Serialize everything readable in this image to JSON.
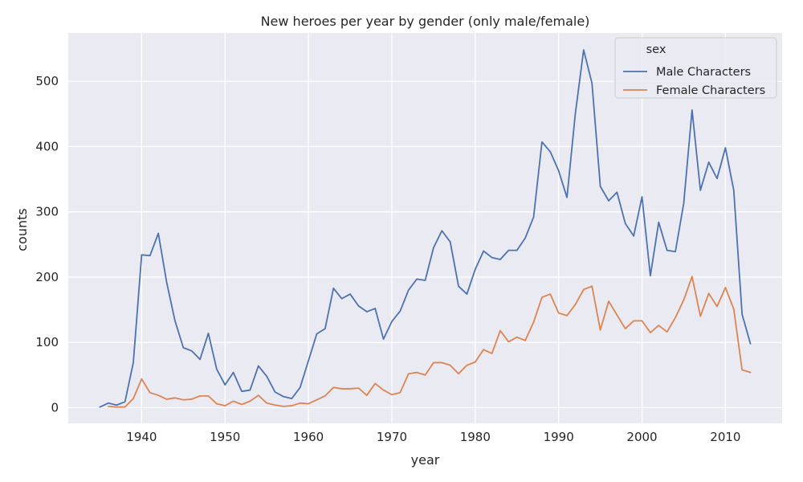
{
  "chart_data": {
    "type": "line",
    "title": "New heroes per year by gender (only male/female)",
    "xlabel": "year",
    "ylabel": "counts",
    "xlim": [
      1931.2,
      2016.8
    ],
    "ylim": [
      -24,
      574
    ],
    "xticks": [
      "1940",
      "1950",
      "1960",
      "1970",
      "1980",
      "1990",
      "2000",
      "2010"
    ],
    "yticks": [
      "0",
      "100",
      "200",
      "300",
      "400",
      "500"
    ],
    "grid": true,
    "legend": {
      "title": "sex",
      "placement": "top-right"
    },
    "series": [
      {
        "name": "Male Characters",
        "color": "#4c72b0",
        "points": [
          [
            1935,
            1
          ],
          [
            1936,
            7
          ],
          [
            1937,
            4
          ],
          [
            1938,
            9
          ],
          [
            1939,
            69
          ],
          [
            1940,
            234
          ],
          [
            1941,
            233
          ],
          [
            1942,
            267
          ],
          [
            1943,
            192
          ],
          [
            1944,
            133
          ],
          [
            1945,
            92
          ],
          [
            1946,
            87
          ],
          [
            1947,
            74
          ],
          [
            1948,
            114
          ],
          [
            1949,
            59
          ],
          [
            1950,
            35
          ],
          [
            1951,
            54
          ],
          [
            1952,
            25
          ],
          [
            1953,
            27
          ],
          [
            1954,
            64
          ],
          [
            1955,
            48
          ],
          [
            1956,
            24
          ],
          [
            1957,
            17
          ],
          [
            1958,
            14
          ],
          [
            1959,
            31
          ],
          [
            1960,
            72
          ],
          [
            1961,
            113
          ],
          [
            1962,
            121
          ],
          [
            1963,
            183
          ],
          [
            1964,
            167
          ],
          [
            1965,
            174
          ],
          [
            1966,
            156
          ],
          [
            1967,
            147
          ],
          [
            1968,
            152
          ],
          [
            1969,
            105
          ],
          [
            1970,
            132
          ],
          [
            1971,
            148
          ],
          [
            1972,
            180
          ],
          [
            1973,
            197
          ],
          [
            1974,
            195
          ],
          [
            1975,
            245
          ],
          [
            1976,
            271
          ],
          [
            1977,
            254
          ],
          [
            1978,
            186
          ],
          [
            1979,
            174
          ],
          [
            1980,
            212
          ],
          [
            1981,
            240
          ],
          [
            1982,
            230
          ],
          [
            1983,
            227
          ],
          [
            1984,
            241
          ],
          [
            1985,
            241
          ],
          [
            1986,
            260
          ],
          [
            1987,
            292
          ],
          [
            1988,
            407
          ],
          [
            1989,
            392
          ],
          [
            1990,
            363
          ],
          [
            1991,
            322
          ],
          [
            1992,
            450
          ],
          [
            1993,
            548
          ],
          [
            1994,
            497
          ],
          [
            1995,
            339
          ],
          [
            1996,
            317
          ],
          [
            1997,
            330
          ],
          [
            1998,
            282
          ],
          [
            1999,
            263
          ],
          [
            2000,
            323
          ],
          [
            2001,
            202
          ],
          [
            2002,
            284
          ],
          [
            2003,
            241
          ],
          [
            2004,
            239
          ],
          [
            2005,
            313
          ],
          [
            2006,
            456
          ],
          [
            2007,
            333
          ],
          [
            2008,
            376
          ],
          [
            2009,
            351
          ],
          [
            2010,
            398
          ],
          [
            2011,
            333
          ],
          [
            2012,
            143
          ],
          [
            2013,
            98
          ]
        ]
      },
      {
        "name": "Female Characters",
        "color": "#dd8452",
        "points": [
          [
            1936,
            2
          ],
          [
            1937,
            1
          ],
          [
            1938,
            1
          ],
          [
            1939,
            14
          ],
          [
            1940,
            44
          ],
          [
            1941,
            23
          ],
          [
            1942,
            19
          ],
          [
            1943,
            13
          ],
          [
            1944,
            15
          ],
          [
            1945,
            12
          ],
          [
            1946,
            13
          ],
          [
            1947,
            18
          ],
          [
            1948,
            18
          ],
          [
            1949,
            6
          ],
          [
            1950,
            3
          ],
          [
            1951,
            10
          ],
          [
            1952,
            5
          ],
          [
            1953,
            10
          ],
          [
            1954,
            19
          ],
          [
            1955,
            7
          ],
          [
            1956,
            4
          ],
          [
            1957,
            2
          ],
          [
            1958,
            3
          ],
          [
            1959,
            7
          ],
          [
            1960,
            6
          ],
          [
            1961,
            12
          ],
          [
            1962,
            18
          ],
          [
            1963,
            31
          ],
          [
            1964,
            29
          ],
          [
            1965,
            29
          ],
          [
            1966,
            30
          ],
          [
            1967,
            19
          ],
          [
            1968,
            37
          ],
          [
            1969,
            27
          ],
          [
            1970,
            20
          ],
          [
            1971,
            23
          ],
          [
            1972,
            52
          ],
          [
            1973,
            54
          ],
          [
            1974,
            50
          ],
          [
            1975,
            69
          ],
          [
            1976,
            69
          ],
          [
            1977,
            65
          ],
          [
            1978,
            52
          ],
          [
            1979,
            65
          ],
          [
            1980,
            70
          ],
          [
            1981,
            89
          ],
          [
            1982,
            83
          ],
          [
            1983,
            118
          ],
          [
            1984,
            101
          ],
          [
            1985,
            108
          ],
          [
            1986,
            103
          ],
          [
            1987,
            131
          ],
          [
            1988,
            169
          ],
          [
            1989,
            174
          ],
          [
            1990,
            145
          ],
          [
            1991,
            141
          ],
          [
            1992,
            158
          ],
          [
            1993,
            181
          ],
          [
            1994,
            186
          ],
          [
            1995,
            119
          ],
          [
            1996,
            163
          ],
          [
            1997,
            142
          ],
          [
            1998,
            121
          ],
          [
            1999,
            133
          ],
          [
            2000,
            133
          ],
          [
            2001,
            115
          ],
          [
            2002,
            126
          ],
          [
            2003,
            116
          ],
          [
            2004,
            138
          ],
          [
            2005,
            165
          ],
          [
            2006,
            201
          ],
          [
            2007,
            140
          ],
          [
            2008,
            175
          ],
          [
            2009,
            155
          ],
          [
            2010,
            184
          ],
          [
            2011,
            151
          ],
          [
            2012,
            58
          ],
          [
            2013,
            54
          ]
        ]
      }
    ]
  }
}
